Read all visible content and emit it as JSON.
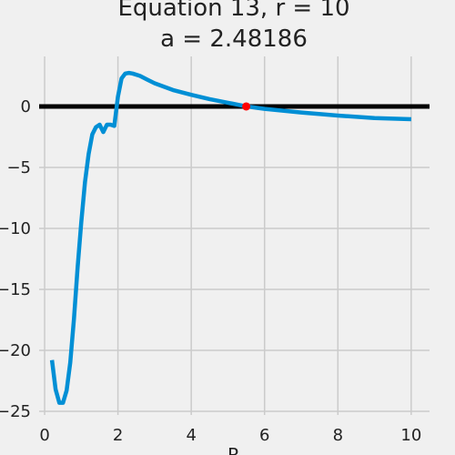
{
  "chart_data": {
    "type": "line",
    "title": "Equation 13, r = 10",
    "subtitle": "a = 2.48186",
    "xlabel": "R",
    "ylabel": "",
    "xlim": [
      -0.15,
      10.5
    ],
    "ylim": [
      -25.3,
      4.1
    ],
    "xticks": [
      0,
      2,
      4,
      6,
      8,
      10
    ],
    "yticks": [
      0,
      -5,
      -10,
      -15,
      -20,
      -25
    ],
    "grid": true,
    "colors": {
      "line": "#008fd5",
      "zero_line": "#000000",
      "marker": "#ff0000",
      "background": "#f0f0f0",
      "grid": "#cbcbcb"
    },
    "series": [
      {
        "x": [
          0.2,
          0.3,
          0.4,
          0.5,
          0.6,
          0.7,
          0.8,
          0.9,
          1.0,
          1.1,
          1.2,
          1.3,
          1.4,
          1.5,
          1.6,
          1.7,
          1.8,
          1.9,
          2.0,
          2.1,
          2.2,
          2.3,
          2.4,
          2.6,
          2.8,
          3.0,
          3.5,
          4.0,
          4.5,
          5.0,
          5.5,
          6.0,
          7.0,
          8.0,
          9.0,
          10.0
        ],
        "y": [
          -20.8,
          -23.2,
          -24.3,
          -24.3,
          -23.3,
          -21.0,
          -17.4,
          -13.2,
          -9.5,
          -6.2,
          -3.9,
          -2.3,
          -1.7,
          -1.5,
          -2.1,
          -1.5,
          -1.5,
          -1.6,
          0.8,
          2.3,
          2.7,
          2.75,
          2.7,
          2.5,
          2.2,
          1.9,
          1.35,
          0.95,
          0.6,
          0.3,
          0.0,
          -0.2,
          -0.5,
          -0.75,
          -0.95,
          -1.05
        ]
      }
    ],
    "zero_line": 0,
    "root": {
      "x": 5.5,
      "y": 0
    }
  }
}
